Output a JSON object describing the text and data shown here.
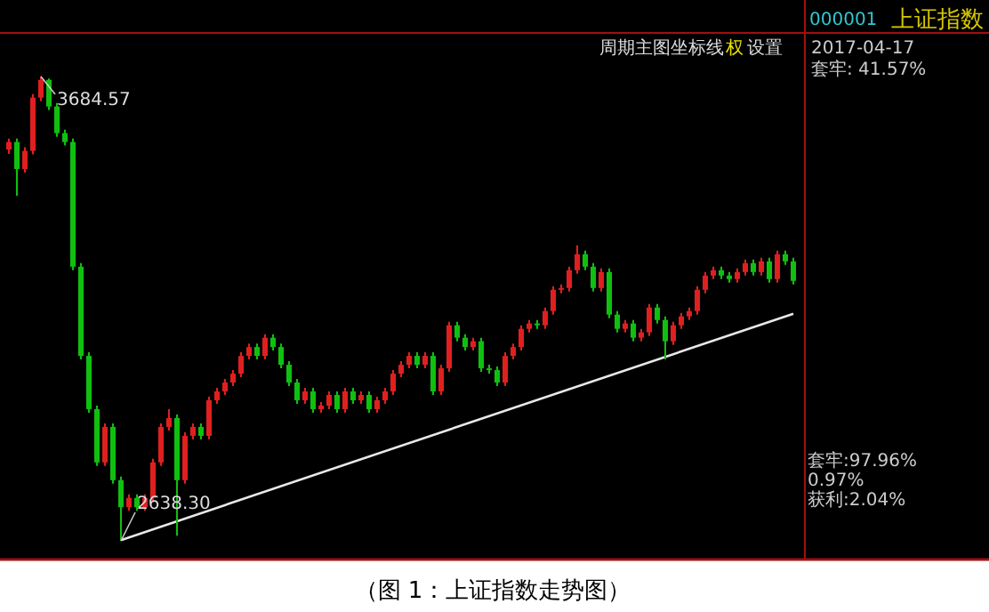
{
  "chart_data": {
    "type": "candlestick",
    "title": "上证指数",
    "subtitle": "000001",
    "categories": [
      null,
      null,
      null,
      null,
      null,
      null,
      null,
      null,
      null,
      null,
      null,
      null,
      null,
      null,
      null,
      null,
      null,
      null,
      null,
      null,
      null,
      null,
      null,
      null,
      null,
      null,
      null,
      null,
      null,
      null,
      null,
      null,
      null,
      null,
      null,
      null,
      null,
      null,
      null,
      null,
      null,
      null,
      null,
      null,
      null,
      null,
      null,
      null,
      null,
      null,
      null,
      null,
      null,
      null,
      null,
      null,
      null,
      null,
      null,
      null,
      null,
      null,
      null,
      null,
      null,
      null,
      null,
      null,
      null,
      null,
      null,
      null,
      null,
      null,
      null,
      null,
      null,
      null,
      null,
      null,
      null,
      null,
      null,
      null,
      null,
      null,
      null,
      null,
      null,
      null,
      null,
      null,
      null,
      null,
      null,
      null,
      null,
      null,
      null
    ],
    "ohlc": [
      [
        3520,
        3545,
        3510,
        3537
      ],
      [
        3537,
        3545,
        3416,
        3476
      ],
      [
        3476,
        3525,
        3468,
        3517
      ],
      [
        3517,
        3645,
        3509,
        3637
      ],
      [
        3637,
        3684.57,
        3629,
        3677
      ],
      [
        3677,
        3680,
        3609,
        3617
      ],
      [
        3617,
        3625,
        3549,
        3557
      ],
      [
        3557,
        3565,
        3529,
        3537
      ],
      [
        3537,
        3545,
        3248,
        3256
      ],
      [
        3256,
        3264,
        3047,
        3055
      ],
      [
        3055,
        3063,
        2927,
        2935
      ],
      [
        2935,
        2943,
        2807,
        2815
      ],
      [
        2815,
        2903,
        2807,
        2895
      ],
      [
        2895,
        2903,
        2767,
        2775
      ],
      [
        2775,
        2783,
        2638.3,
        2714
      ],
      [
        2714,
        2743,
        2706,
        2735
      ],
      [
        2735,
        2743,
        2706,
        2714
      ],
      [
        2714,
        2743,
        2706,
        2735
      ],
      [
        2735,
        2823,
        2727,
        2815
      ],
      [
        2815,
        2903,
        2807,
        2895
      ],
      [
        2895,
        2935,
        2887,
        2915
      ],
      [
        2915,
        2923,
        2650,
        2775
      ],
      [
        2775,
        2883,
        2767,
        2875
      ],
      [
        2875,
        2903,
        2867,
        2895
      ],
      [
        2895,
        2903,
        2867,
        2875
      ],
      [
        2875,
        2963,
        2867,
        2955
      ],
      [
        2955,
        2983,
        2947,
        2975
      ],
      [
        2975,
        3003,
        2967,
        2995
      ],
      [
        2995,
        3023,
        2987,
        3015
      ],
      [
        3015,
        3063,
        3007,
        3055
      ],
      [
        3055,
        3083,
        3047,
        3075
      ],
      [
        3075,
        3083,
        3047,
        3055
      ],
      [
        3055,
        3104,
        3047,
        3096
      ],
      [
        3096,
        3104,
        3067,
        3075
      ],
      [
        3075,
        3083,
        3027,
        3035
      ],
      [
        3035,
        3043,
        2987,
        2995
      ],
      [
        2995,
        3003,
        2947,
        2955
      ],
      [
        2955,
        2983,
        2947,
        2975
      ],
      [
        2975,
        2983,
        2927,
        2935
      ],
      [
        2935,
        2951,
        2927,
        2943
      ],
      [
        2943,
        2975,
        2935,
        2967
      ],
      [
        2967,
        2975,
        2927,
        2935
      ],
      [
        2935,
        2983,
        2927,
        2975
      ],
      [
        2975,
        2983,
        2947,
        2955
      ],
      [
        2955,
        2975,
        2947,
        2967
      ],
      [
        2967,
        2975,
        2927,
        2935
      ],
      [
        2935,
        2963,
        2927,
        2955
      ],
      [
        2955,
        2983,
        2947,
        2975
      ],
      [
        2975,
        3023,
        2967,
        3015
      ],
      [
        3015,
        3043,
        3007,
        3035
      ],
      [
        3035,
        3063,
        3027,
        3055
      ],
      [
        3055,
        3063,
        3027,
        3035
      ],
      [
        3035,
        3063,
        3027,
        3055
      ],
      [
        3055,
        3063,
        2967,
        2975
      ],
      [
        2975,
        3035,
        2967,
        3027
      ],
      [
        3027,
        3132,
        3019,
        3124
      ],
      [
        3124,
        3132,
        3088,
        3096
      ],
      [
        3096,
        3104,
        3067,
        3075
      ],
      [
        3075,
        3096,
        3067,
        3088
      ],
      [
        3088,
        3096,
        3019,
        3027
      ],
      [
        3027,
        3035,
        3015,
        3023
      ],
      [
        3023,
        3031,
        2987,
        2995
      ],
      [
        2995,
        3063,
        2987,
        3055
      ],
      [
        3055,
        3083,
        3047,
        3075
      ],
      [
        3075,
        3124,
        3067,
        3116
      ],
      [
        3116,
        3136,
        3108,
        3128
      ],
      [
        3128,
        3136,
        3116,
        3124
      ],
      [
        3124,
        3164,
        3116,
        3156
      ],
      [
        3156,
        3212,
        3148,
        3204
      ],
      [
        3204,
        3216,
        3196,
        3208
      ],
      [
        3208,
        3256,
        3200,
        3248
      ],
      [
        3248,
        3304,
        3240,
        3284
      ],
      [
        3284,
        3292,
        3248,
        3256
      ],
      [
        3256,
        3264,
        3200,
        3208
      ],
      [
        3208,
        3252,
        3200,
        3244
      ],
      [
        3244,
        3252,
        3140,
        3148
      ],
      [
        3148,
        3156,
        3108,
        3116
      ],
      [
        3116,
        3136,
        3108,
        3128
      ],
      [
        3128,
        3136,
        3088,
        3096
      ],
      [
        3096,
        3116,
        3088,
        3108
      ],
      [
        3108,
        3172,
        3100,
        3164
      ],
      [
        3164,
        3172,
        3128,
        3136
      ],
      [
        3136,
        3144,
        3047,
        3088
      ],
      [
        3088,
        3132,
        3080,
        3124
      ],
      [
        3124,
        3152,
        3116,
        3144
      ],
      [
        3144,
        3164,
        3136,
        3156
      ],
      [
        3156,
        3212,
        3148,
        3204
      ],
      [
        3204,
        3244,
        3196,
        3236
      ],
      [
        3236,
        3256,
        3228,
        3248
      ],
      [
        3248,
        3256,
        3228,
        3236
      ],
      [
        3236,
        3244,
        3220,
        3228
      ],
      [
        3228,
        3252,
        3220,
        3244
      ],
      [
        3244,
        3272,
        3236,
        3264
      ],
      [
        3264,
        3272,
        3236,
        3244
      ],
      [
        3244,
        3276,
        3236,
        3268
      ],
      [
        3268,
        3276,
        3220,
        3228
      ],
      [
        3228,
        3292,
        3220,
        3284
      ],
      [
        3284,
        3292,
        3260,
        3268
      ],
      [
        3268,
        3276,
        3216,
        3224
      ]
    ],
    "colors": [
      "#e02020",
      "#10c010",
      "#e02020",
      "#e02020",
      "#e02020",
      "#10c010",
      "#10c010",
      "#10c010",
      "#10c010",
      "#10c010",
      "#10c010",
      "#10c010",
      "#e02020",
      "#10c010",
      "#10c010",
      "#e02020",
      "#10c010",
      "#e02020",
      "#e02020",
      "#e02020",
      "#e02020",
      "#10c010",
      "#e02020",
      "#e02020",
      "#10c010",
      "#e02020",
      "#e02020",
      "#e02020",
      "#e02020",
      "#e02020",
      "#e02020",
      "#10c010",
      "#e02020",
      "#10c010",
      "#10c010",
      "#10c010",
      "#10c010",
      "#e02020",
      "#10c010",
      "#e02020",
      "#e02020",
      "#10c010",
      "#e02020",
      "#10c010",
      "#e02020",
      "#10c010",
      "#e02020",
      "#e02020",
      "#e02020",
      "#e02020",
      "#e02020",
      "#10c010",
      "#e02020",
      "#10c010",
      "#e02020",
      "#e02020",
      "#10c010",
      "#10c010",
      "#e02020",
      "#10c010",
      "#10c010",
      "#10c010",
      "#e02020",
      "#e02020",
      "#e02020",
      "#e02020",
      "#10c010",
      "#e02020",
      "#e02020",
      "#e02020",
      "#e02020",
      "#e02020",
      "#10c010",
      "#10c010",
      "#e02020",
      "#10c010",
      "#10c010",
      "#e02020",
      "#10c010",
      "#e02020",
      "#e02020",
      "#10c010",
      "#10c010",
      "#e02020",
      "#e02020",
      "#e02020",
      "#e02020",
      "#e02020",
      "#e02020",
      "#10c010",
      "#10c010",
      "#e02020",
      "#e02020",
      "#10c010",
      "#e02020",
      "#10c010",
      "#e02020",
      "#10c010",
      "#10c010"
    ],
    "series": [
      {
        "type": "line",
        "color": "#e8e8e8",
        "values": [
          null,
          null,
          null,
          null,
          null,
          null,
          null,
          null,
          null,
          null,
          null,
          null,
          null,
          null,
          2640,
          null,
          null,
          null,
          null,
          null,
          null,
          null,
          null,
          null,
          null,
          null,
          null,
          null,
          null,
          null,
          null,
          null,
          null,
          null,
          null,
          null,
          null,
          null,
          null,
          null,
          null,
          null,
          null,
          null,
          null,
          null,
          null,
          null,
          null,
          null,
          null,
          null,
          null,
          null,
          null,
          null,
          null,
          null,
          null,
          null,
          null,
          null,
          null,
          null,
          null,
          null,
          null,
          null,
          null,
          null,
          null,
          null,
          null,
          null,
          null,
          null,
          null,
          null,
          null,
          null,
          null,
          null,
          null,
          null,
          null,
          null,
          null,
          null,
          null,
          null,
          null,
          null,
          null,
          null,
          null,
          null,
          null,
          null,
          3150
        ]
      }
    ],
    "annotations": [
      "3684.57",
      "2638.30",
      "周期",
      "主图",
      "坐标线",
      "权",
      "设置",
      "2017-04-17",
      "套牢: 41.57%",
      "套牢:97.96%",
      "0.97%",
      "获利:2.04%",
      "（图 1：上证指数走势图）"
    ]
  }
}
